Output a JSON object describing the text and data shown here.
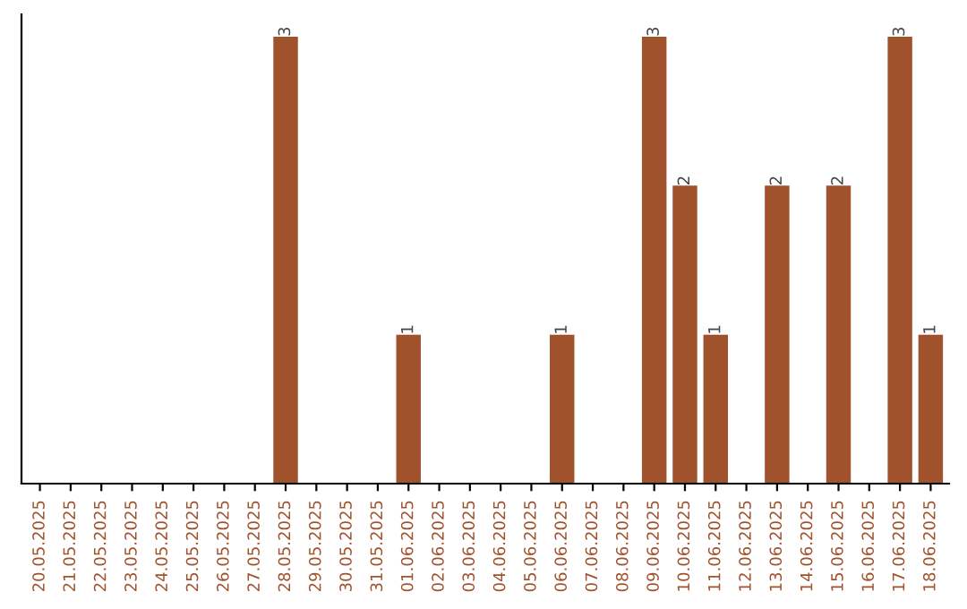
{
  "chart_data": {
    "type": "bar",
    "categories": [
      "20.05.2025",
      "21.05.2025",
      "22.05.2025",
      "23.05.2025",
      "24.05.2025",
      "25.05.2025",
      "26.05.2025",
      "27.05.2025",
      "28.05.2025",
      "29.05.2025",
      "30.05.2025",
      "31.05.2025",
      "01.06.2025",
      "02.06.2025",
      "03.06.2025",
      "04.06.2025",
      "05.06.2025",
      "06.06.2025",
      "07.06.2025",
      "08.06.2025",
      "09.06.2025",
      "10.06.2025",
      "11.06.2025",
      "12.06.2025",
      "13.06.2025",
      "14.06.2025",
      "15.06.2025",
      "16.06.2025",
      "17.06.2025",
      "18.06.2025"
    ],
    "values": [
      0,
      0,
      0,
      0,
      0,
      0,
      0,
      0,
      3,
      0,
      0,
      0,
      1,
      0,
      0,
      0,
      0,
      1,
      0,
      0,
      3,
      2,
      1,
      0,
      2,
      0,
      2,
      0,
      3,
      1
    ],
    "color": "#a0522d",
    "value_labels": [
      null,
      null,
      null,
      null,
      null,
      null,
      null,
      null,
      "3",
      null,
      null,
      null,
      "1",
      null,
      null,
      null,
      null,
      "1",
      null,
      null,
      "3",
      "2",
      "1",
      null,
      "2",
      null,
      "2",
      null,
      "3",
      "1"
    ],
    "tick_labels": "x",
    "grid": false
  }
}
